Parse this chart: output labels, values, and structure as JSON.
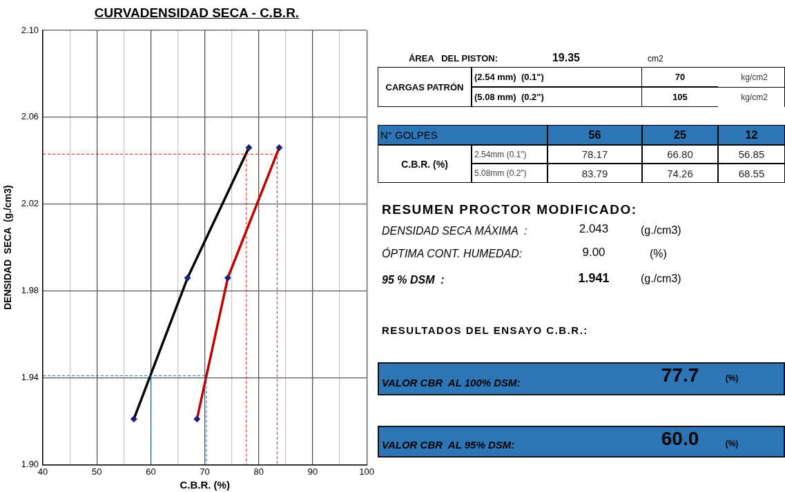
{
  "chart_data": [
    {
      "type": "line",
      "title": "CURVADENSIDAD SECA - C.B.R.",
      "xlabel": "C.B.R. (%)",
      "ylabel": "DENSIDAD  SECA  (g./cm3)",
      "xlim": [
        40,
        100
      ],
      "ylim": [
        1.9,
        2.1
      ],
      "xticks": [
        40,
        {
          "value": 45,
          "label": null
        },
        50,
        {
          "value": 55,
          "label": null
        },
        60,
        {
          "value": 65,
          "label": null
        },
        70,
        {
          "value": 75,
          "label": null
        },
        80,
        {
          "value": 85,
          "label": null
        },
        90,
        {
          "value": 95,
          "label": null
        },
        100
      ],
      "yticks": [
        {
          "value": 1.9,
          "label": "1.90"
        },
        1.94,
        1.98,
        2.02,
        2.06,
        {
          "value": 2.1,
          "label": "2.10"
        }
      ],
      "grid": true,
      "marker": "diamond",
      "line_style": "solid",
      "series": [
        {
          "color": "#ff0000",
          "marker": "none",
          "line_style": "dashed",
          "x": [
            40,
            83.4,
            83.4
          ],
          "values": [
            2.043,
            2.043,
            1.9
          ]
        },
        {
          "color": "#ff0000",
          "marker": "none",
          "line_style": "dashed",
          "x": [
            77.7,
            77.7
          ],
          "values": [
            2.043,
            1.9
          ]
        },
        {
          "color": "#0070c0",
          "marker": "none",
          "line_style": "dashed",
          "x": [
            40,
            70.3,
            70.3
          ],
          "values": [
            1.941,
            1.941,
            1.9
          ]
        },
        {
          "color": "#0070c0",
          "marker": "none",
          "line_style": "dashed",
          "x": [
            60,
            60
          ],
          "values": [
            1.941,
            1.9
          ]
        },
        {
          "color": "#000000",
          "x": [
            56.85,
            66.8,
            78.17
          ],
          "values": [
            1.921,
            1.986,
            2.046
          ]
        },
        {
          "color": "#c00000",
          "x": [
            68.55,
            74.26,
            83.79
          ],
          "values": [
            1.921,
            1.986,
            2.046
          ]
        }
      ]
    },
    {
      "type": "other",
      "annotations": [
        "ÁREA   DEL PISTON:",
        "19.35",
        "cm2",
        "CARGAS PATRÓN",
        "(2.54 mm)  (0.1\")",
        "70",
        "kg/cm2",
        "(5.08 mm)  (0.2\")",
        "105",
        "kg/cm2",
        "N° GOLPES",
        "56",
        "25",
        "12",
        "C.B.R. (%)",
        "2.54mm (0.1\")",
        "78.17",
        "66.80",
        "56.85",
        "5.08mm (0.2\")",
        "83.79",
        "74.26",
        "68.55",
        "RESUMEN PROCTOR MODIFICADO:",
        "DENSIDAD SECA MÁXIMA  :",
        "2.043",
        "(g./cm3)",
        "ÓPTIMA CONT. HUMEDAD:",
        "9.00",
        "(%)",
        "95 % DSM  :",
        "1.941",
        "(g./cm3)",
        "RESULTADOS DEL ENSAYO C.B.R.:",
        "VALOR CBR  AL 100% DSM:",
        "77.7",
        "(%)",
        "VALOR CBR  AL 95% DSM:",
        "60.0",
        "(%)"
      ]
    }
  ]
}
